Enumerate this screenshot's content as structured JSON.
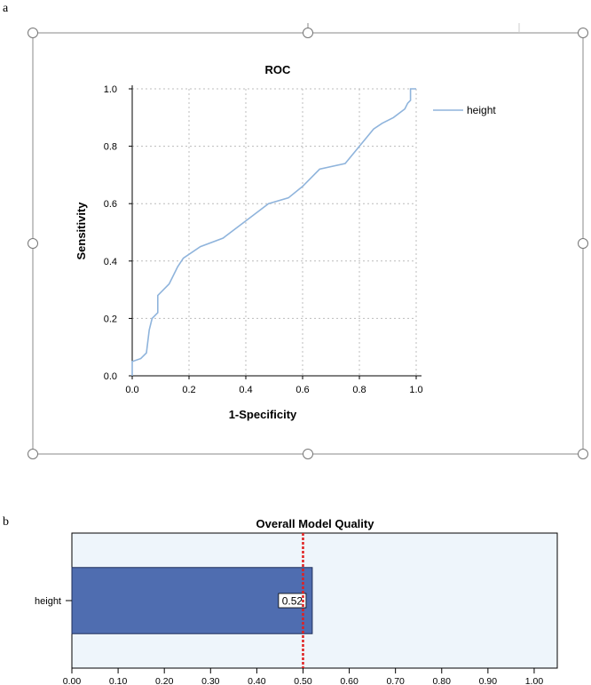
{
  "panels": {
    "a": "a",
    "b": "b"
  },
  "colors": {
    "roc_line": "#8fb4dc",
    "grid": "#bcbcbc",
    "frame": "#888888",
    "bar_fill": "#4f6db0",
    "bar_stroke": "#1f2f5a",
    "plot_bg": "#eef5fb",
    "ref_line": "#e02020"
  },
  "chart_data": [
    {
      "type": "line",
      "title": "ROC",
      "xlabel": "1-Specificity",
      "ylabel": "Sensitivity",
      "xlim": [
        0,
        1
      ],
      "ylim": [
        0,
        1
      ],
      "xticks": [
        "0.0",
        "0.2",
        "0.4",
        "0.6",
        "0.8",
        "1.0"
      ],
      "yticks": [
        "0.0",
        "0.2",
        "0.4",
        "0.6",
        "0.8",
        "1.0"
      ],
      "grid": true,
      "legend_position": "right",
      "series": [
        {
          "name": "height",
          "x": [
            0.0,
            0.0,
            0.03,
            0.05,
            0.06,
            0.07,
            0.08,
            0.09,
            0.09,
            0.11,
            0.13,
            0.16,
            0.18,
            0.24,
            0.32,
            0.4,
            0.48,
            0.55,
            0.6,
            0.66,
            0.75,
            0.8,
            0.85,
            0.88,
            0.92,
            0.96,
            0.97,
            0.98,
            0.98,
            1.0
          ],
          "y": [
            0.0,
            0.05,
            0.06,
            0.08,
            0.16,
            0.2,
            0.21,
            0.22,
            0.28,
            0.3,
            0.32,
            0.38,
            0.41,
            0.45,
            0.48,
            0.54,
            0.6,
            0.62,
            0.66,
            0.72,
            0.74,
            0.8,
            0.86,
            0.88,
            0.9,
            0.93,
            0.95,
            0.96,
            1.0,
            1.0
          ]
        }
      ]
    },
    {
      "type": "bar",
      "orientation": "horizontal",
      "title": "Overall Model Quality",
      "categories": [
        "height"
      ],
      "values": [
        0.52
      ],
      "data_labels": [
        "0.52"
      ],
      "xlim": [
        0,
        1.05
      ],
      "xticks": [
        0.0,
        0.1,
        0.2,
        0.3,
        0.4,
        0.5,
        0.6,
        0.7,
        0.8,
        0.9,
        1.0
      ],
      "xtick_labels": [
        "0.00",
        "0.10",
        "0.20",
        "0.30",
        "0.40",
        "0.50",
        "0.60",
        "0.70",
        "0.80",
        "0.90",
        "1.00"
      ],
      "reference_line": 0.5,
      "grid": false
    }
  ]
}
